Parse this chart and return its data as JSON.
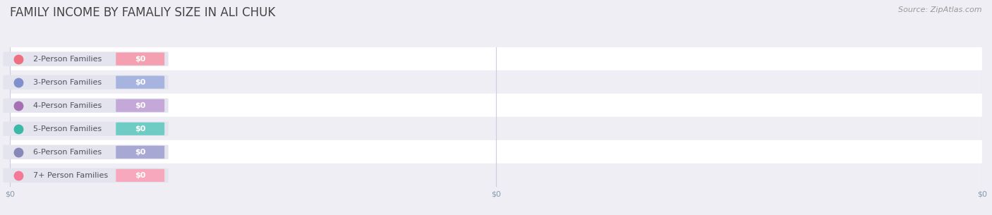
{
  "title": "FAMILY INCOME BY FAMALIY SIZE IN ALI CHUK",
  "source": "Source: ZipAtlas.com",
  "categories": [
    "2-Person Families",
    "3-Person Families",
    "4-Person Families",
    "5-Person Families",
    "6-Person Families",
    "7+ Person Families"
  ],
  "values": [
    0,
    0,
    0,
    0,
    0,
    0
  ],
  "bar_colors": [
    "#f4a0b0",
    "#a8b4e0",
    "#c4a8d8",
    "#6eccc4",
    "#a8a8d4",
    "#f8a8bc"
  ],
  "dot_colors": [
    "#ee7080",
    "#8090cc",
    "#a870b4",
    "#3ab8a8",
    "#8888b8",
    "#f47898"
  ],
  "bg_color": "#eeeef4",
  "row_color_even": "#ffffff",
  "row_color_odd": "#eeeef4",
  "bar_bg_color": "#e4e4ee",
  "title_color": "#444444",
  "label_color": "#505060",
  "value_label_color": "#ffffff",
  "source_color": "#999999",
  "tick_label_color": "#8899aa",
  "grid_color": "#ccccdd",
  "title_fontsize": 12,
  "label_fontsize": 8,
  "value_fontsize": 8,
  "source_fontsize": 8,
  "tick_fontsize": 8
}
